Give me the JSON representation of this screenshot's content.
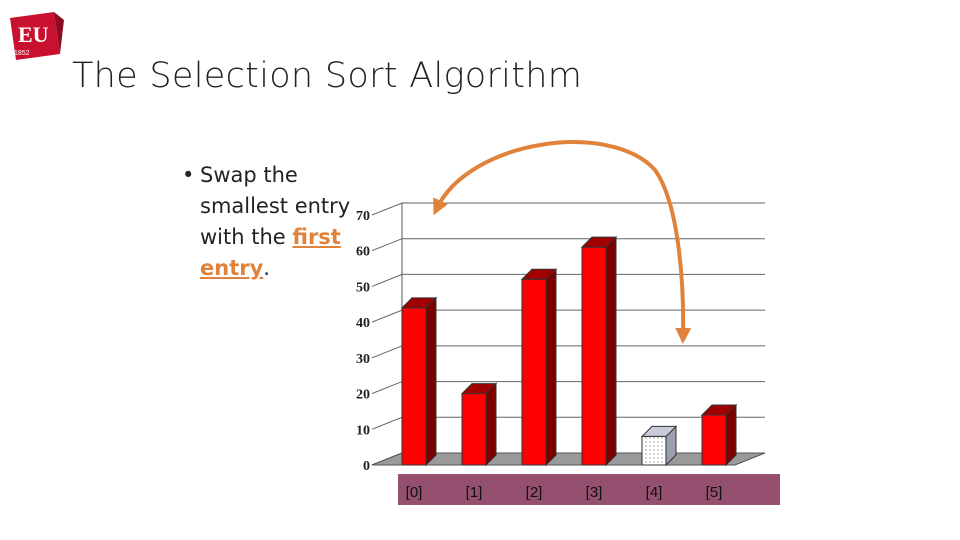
{
  "slide": {
    "logo_text": "EU",
    "logo_year": "1852",
    "title": "The Selection Sort Algorithm",
    "bullet_marker": "•",
    "bullet": {
      "part1": "Swap the smallest entry with the ",
      "em1": "first",
      "space": " ",
      "em2": "entry",
      "part2": "."
    }
  },
  "colors": {
    "bar_red": "#ff0000",
    "bar_dark": "#a00000",
    "bar_side": "#7a0000",
    "highlight_bar": "#ffffff",
    "highlight_side": "#9aa0b0",
    "label_strip": "#94506e",
    "arrow": "#e0823a",
    "emphasis": "#e0823a"
  },
  "chart_data": {
    "type": "bar",
    "categories": [
      "[0]",
      "[1]",
      "[2]",
      "[3]",
      "[4]",
      "[5]"
    ],
    "values": [
      44,
      20,
      52,
      61,
      8,
      14
    ],
    "highlight_index": 4,
    "ylim": [
      0,
      70
    ],
    "yticks": [
      "0",
      "10",
      "20",
      "30",
      "40",
      "50",
      "60",
      "70"
    ],
    "ytick_values": [
      0,
      10,
      20,
      30,
      40,
      50,
      60,
      70
    ],
    "grid": true,
    "three_d": true,
    "annotation": "curved double-headed arrow between [0] and [4]"
  }
}
